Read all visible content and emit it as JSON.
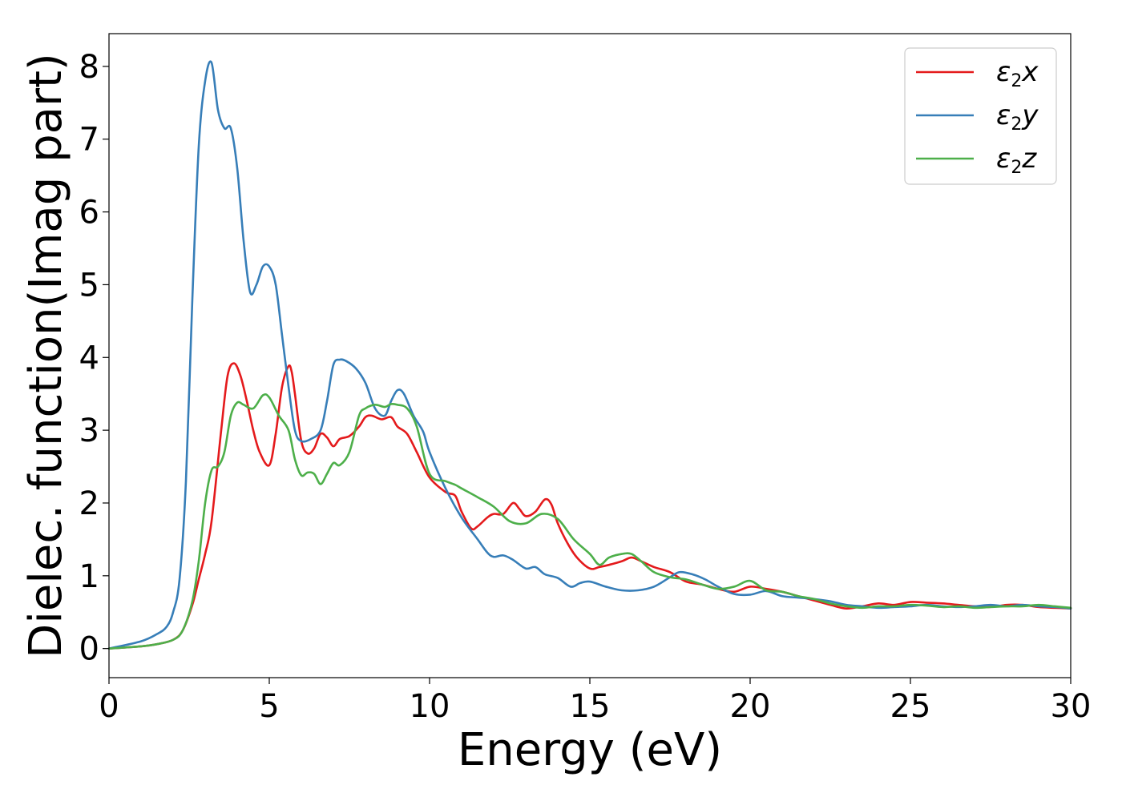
{
  "chart_data": {
    "type": "line",
    "xlabel": "Energy (eV)",
    "ylabel": "Dielec. function(Imag part)",
    "xlim": [
      0,
      30
    ],
    "ylim": [
      -0.4,
      8.45
    ],
    "xticks": [
      0,
      5,
      10,
      15,
      20,
      25,
      30
    ],
    "yticks": [
      0,
      1,
      2,
      3,
      4,
      5,
      6,
      7,
      8
    ],
    "grid": false,
    "legend_position": "top-right",
    "series": [
      {
        "name": "ε2x",
        "legend_main": "ε",
        "legend_sub": "2",
        "legend_tail": "x",
        "color": "#e41a1c",
        "x": [
          0,
          1,
          1.5,
          2,
          2.3,
          2.6,
          2.8,
          3.0,
          3.2,
          3.5,
          3.7,
          3.9,
          4.1,
          4.3,
          4.5,
          4.7,
          5.0,
          5.2,
          5.4,
          5.6,
          5.7,
          5.8,
          6.0,
          6.2,
          6.4,
          6.6,
          6.8,
          7.0,
          7.2,
          7.5,
          7.8,
          8.0,
          8.2,
          8.5,
          8.8,
          9.0,
          9.3,
          9.6,
          10.0,
          10.5,
          10.8,
          11.0,
          11.3,
          11.5,
          11.8,
          12.0,
          12.3,
          12.6,
          12.8,
          13.0,
          13.3,
          13.6,
          13.8,
          14.0,
          14.3,
          14.6,
          15.0,
          15.3,
          15.6,
          16.0,
          16.3,
          16.6,
          17.0,
          17.5,
          18.0,
          18.5,
          19.0,
          19.5,
          20.0,
          20.5,
          21.0,
          21.5,
          22.0,
          22.5,
          23.0,
          23.5,
          24.0,
          24.5,
          25.0,
          25.5,
          26.0,
          26.5,
          27.0,
          27.5,
          28.0,
          28.5,
          29.0,
          29.5,
          30.0
        ],
        "values": [
          0,
          0.03,
          0.06,
          0.12,
          0.25,
          0.6,
          0.95,
          1.3,
          1.75,
          3.0,
          3.75,
          3.92,
          3.75,
          3.4,
          3.0,
          2.7,
          2.52,
          2.95,
          3.6,
          3.88,
          3.8,
          3.5,
          2.85,
          2.68,
          2.75,
          2.95,
          2.9,
          2.78,
          2.88,
          2.92,
          3.05,
          3.18,
          3.2,
          3.15,
          3.18,
          3.05,
          2.95,
          2.7,
          2.35,
          2.15,
          2.1,
          1.88,
          1.65,
          1.68,
          1.8,
          1.85,
          1.85,
          2.0,
          1.92,
          1.82,
          1.88,
          2.05,
          1.98,
          1.72,
          1.45,
          1.25,
          1.1,
          1.12,
          1.15,
          1.2,
          1.25,
          1.2,
          1.12,
          1.05,
          0.92,
          0.88,
          0.82,
          0.78,
          0.85,
          0.82,
          0.78,
          0.72,
          0.66,
          0.6,
          0.55,
          0.58,
          0.62,
          0.6,
          0.64,
          0.63,
          0.62,
          0.6,
          0.58,
          0.57,
          0.6,
          0.6,
          0.57,
          0.56,
          0.55
        ]
      },
      {
        "name": "ε2y",
        "legend_main": "ε",
        "legend_sub": "2",
        "legend_tail": "y",
        "color": "#377eb8",
        "x": [
          0,
          1,
          1.5,
          1.8,
          2.0,
          2.2,
          2.4,
          2.6,
          2.8,
          3.0,
          3.2,
          3.4,
          3.6,
          3.8,
          4.0,
          4.2,
          4.4,
          4.6,
          4.8,
          5.0,
          5.2,
          5.4,
          5.6,
          5.8,
          6.0,
          6.3,
          6.6,
          6.8,
          7.0,
          7.2,
          7.4,
          7.7,
          8.0,
          8.3,
          8.6,
          8.8,
          9.0,
          9.2,
          9.5,
          9.8,
          10.0,
          10.5,
          11.0,
          11.5,
          11.8,
          12.0,
          12.3,
          12.6,
          13.0,
          13.3,
          13.6,
          14.0,
          14.4,
          14.7,
          15.0,
          15.5,
          16.0,
          16.5,
          17.0,
          17.5,
          17.8,
          18.2,
          18.6,
          19.0,
          19.5,
          20.0,
          20.5,
          21.0,
          21.5,
          22.0,
          22.5,
          23.0,
          23.5,
          24.0,
          24.5,
          25.0,
          25.5,
          26.0,
          26.5,
          27.0,
          27.5,
          28.0,
          28.5,
          29.0,
          29.5,
          30.0
        ],
        "values": [
          0,
          0.1,
          0.2,
          0.3,
          0.5,
          0.95,
          2.3,
          4.8,
          6.9,
          7.8,
          8.05,
          7.4,
          7.15,
          7.15,
          6.6,
          5.6,
          4.9,
          5.0,
          5.25,
          5.25,
          5.0,
          4.3,
          3.6,
          3.0,
          2.85,
          2.88,
          3.0,
          3.4,
          3.9,
          3.97,
          3.95,
          3.85,
          3.65,
          3.3,
          3.2,
          3.4,
          3.55,
          3.5,
          3.2,
          2.98,
          2.7,
          2.2,
          1.8,
          1.5,
          1.32,
          1.26,
          1.28,
          1.22,
          1.1,
          1.12,
          1.02,
          0.97,
          0.85,
          0.9,
          0.92,
          0.85,
          0.8,
          0.8,
          0.85,
          0.98,
          1.05,
          1.02,
          0.95,
          0.85,
          0.75,
          0.74,
          0.79,
          0.72,
          0.7,
          0.68,
          0.65,
          0.6,
          0.58,
          0.56,
          0.57,
          0.58,
          0.6,
          0.58,
          0.57,
          0.58,
          0.6,
          0.58,
          0.6,
          0.58,
          0.57,
          0.55
        ]
      },
      {
        "name": "ε2z",
        "legend_main": "ε",
        "legend_sub": "2",
        "legend_tail": "z",
        "color": "#4daf4a",
        "x": [
          0,
          1,
          1.5,
          2,
          2.3,
          2.6,
          2.8,
          3.0,
          3.2,
          3.4,
          3.6,
          3.8,
          4.0,
          4.2,
          4.5,
          4.8,
          5.0,
          5.3,
          5.6,
          5.8,
          6.0,
          6.2,
          6.4,
          6.6,
          6.8,
          7.0,
          7.2,
          7.5,
          7.8,
          8.0,
          8.3,
          8.6,
          8.8,
          9.0,
          9.3,
          9.6,
          10.0,
          10.5,
          10.8,
          11.0,
          11.5,
          12.0,
          12.5,
          13.0,
          13.5,
          14.0,
          14.5,
          15.0,
          15.3,
          15.6,
          16.0,
          16.3,
          16.6,
          17.0,
          17.5,
          18.0,
          18.5,
          19.0,
          19.5,
          20.0,
          20.5,
          21.0,
          21.5,
          22.0,
          22.5,
          23.0,
          23.5,
          24.0,
          24.5,
          25.0,
          25.5,
          26.0,
          26.5,
          27.0,
          27.5,
          28.0,
          28.5,
          29.0,
          29.5,
          30.0
        ],
        "values": [
          0,
          0.03,
          0.06,
          0.12,
          0.25,
          0.65,
          1.2,
          2.0,
          2.45,
          2.5,
          2.7,
          3.2,
          3.38,
          3.35,
          3.3,
          3.48,
          3.45,
          3.2,
          3.0,
          2.6,
          2.38,
          2.42,
          2.4,
          2.26,
          2.4,
          2.55,
          2.52,
          2.7,
          3.2,
          3.3,
          3.35,
          3.32,
          3.36,
          3.35,
          3.3,
          3.05,
          2.4,
          2.3,
          2.25,
          2.2,
          2.08,
          1.95,
          1.75,
          1.72,
          1.85,
          1.78,
          1.5,
          1.3,
          1.15,
          1.25,
          1.3,
          1.3,
          1.2,
          1.05,
          0.98,
          0.95,
          0.88,
          0.82,
          0.85,
          0.93,
          0.8,
          0.78,
          0.72,
          0.68,
          0.62,
          0.58,
          0.56,
          0.58,
          0.58,
          0.6,
          0.59,
          0.57,
          0.58,
          0.56,
          0.57,
          0.58,
          0.58,
          0.6,
          0.58,
          0.56
        ]
      }
    ]
  }
}
